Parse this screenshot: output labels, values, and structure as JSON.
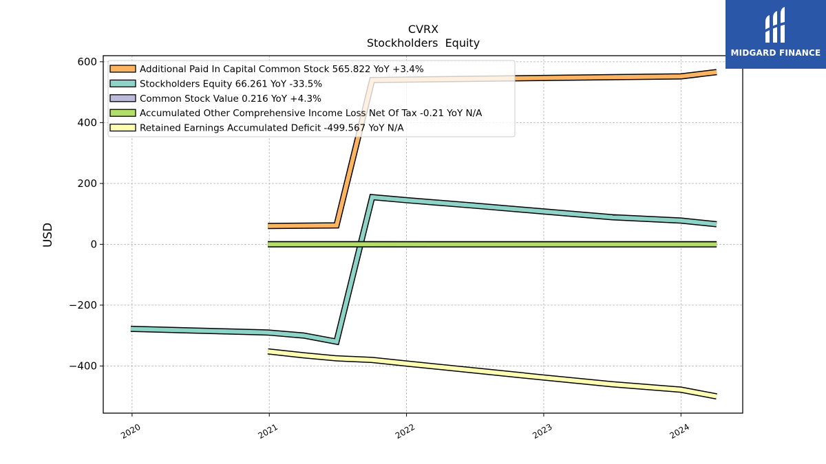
{
  "logo": {
    "text": "MIDGARD FINANCE",
    "icon": "midgard-logo-icon",
    "background": "#2a57a8"
  },
  "chart_data": {
    "type": "line",
    "title": "CVRX",
    "subtitle": "Stockholders  Equity",
    "xlabel": "",
    "ylabel": "USD",
    "xlim": [
      2019.79,
      2024.45
    ],
    "ylim": [
      -555,
      620
    ],
    "x_ticks": [
      2020,
      2021,
      2022,
      2023,
      2024
    ],
    "x_tick_labels": [
      "2020",
      "2021",
      "2022",
      "2023",
      "2024"
    ],
    "y_ticks": [
      600,
      400,
      200,
      0,
      -200,
      -400
    ],
    "y_tick_labels": [
      "600",
      "400",
      "200",
      "0",
      "−200",
      "−400"
    ],
    "grid": true,
    "legend_position": "top-left",
    "series": [
      {
        "name": "Additional Paid In Capital Common Stock  565.822 YoY +3.4%",
        "color": "#fdb462",
        "x": [
          2020.99,
          2021.49,
          2021.75,
          2024.0,
          2024.26
        ],
        "y": [
          60,
          62,
          540,
          552,
          566
        ]
      },
      {
        "name": "Stockholders Equity  66.261 YoY -33.5%",
        "color": "#8dd3c7",
        "x": [
          2019.99,
          2020.99,
          2021.25,
          2021.49,
          2021.75,
          2022.0,
          2022.5,
          2023.0,
          2023.5,
          2024.0,
          2024.26
        ],
        "y": [
          -278,
          -290,
          -300,
          -320,
          155,
          145,
          127,
          108,
          89,
          78,
          66
        ]
      },
      {
        "name": "Common Stock Value  0.216 YoY +4.3%",
        "color": "#bebada",
        "x": [
          2020.99,
          2024.26
        ],
        "y": [
          0.2,
          0.22
        ]
      },
      {
        "name": "Accumulated Other Comprehensive Income Loss Net Of Tax  -0.21 YoY N/A",
        "color": "#b3de69",
        "x": [
          2020.99,
          2024.26
        ],
        "y": [
          0,
          -0.21
        ]
      },
      {
        "name": "Retained Earnings Accumulated Deficit  -499.567 YoY N/A",
        "color": "#ffffb3",
        "x": [
          2020.99,
          2021.25,
          2021.49,
          2021.75,
          2022.0,
          2022.5,
          2023.0,
          2023.5,
          2024.0,
          2024.26
        ],
        "y": [
          -352,
          -365,
          -375,
          -380,
          -392,
          -415,
          -438,
          -460,
          -478,
          -500
        ]
      }
    ]
  }
}
